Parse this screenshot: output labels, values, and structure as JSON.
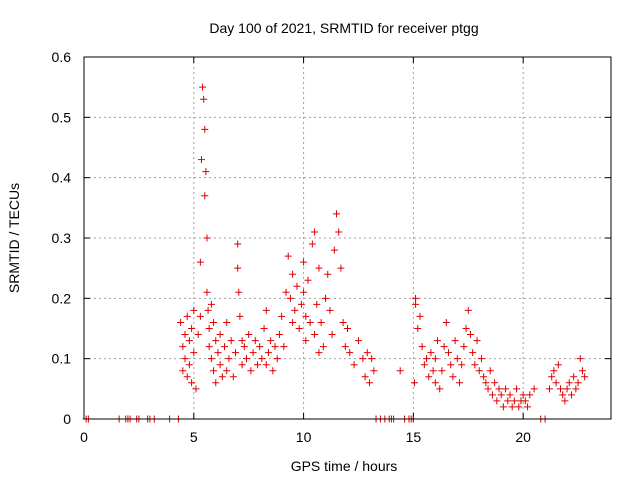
{
  "chart_data": {
    "type": "scatter",
    "title": "Day 100 of 2021, SRMTID for receiver ptgg",
    "xlabel": "GPS time / hours",
    "ylabel": "SRMTID / TECUs",
    "xlim": [
      0,
      24
    ],
    "ylim": [
      0,
      0.6
    ],
    "xticks": [
      0,
      5,
      10,
      15,
      20
    ],
    "xtick_labels": [
      "0",
      "5",
      "10",
      "15",
      "20"
    ],
    "yticks": [
      0,
      0.1,
      0.2,
      0.3,
      0.4,
      0.5,
      0.6
    ],
    "ytick_labels": [
      "0",
      "0.1",
      "0.2",
      "0.3",
      "0.4",
      "0.5",
      "0.6"
    ],
    "grid": true,
    "marker": "+",
    "marker_color": "#e00000",
    "series": [
      {
        "name": "SRMTID",
        "x": [
          0.1,
          0.2,
          1.6,
          1.9,
          2.0,
          2.1,
          2.4,
          2.5,
          2.9,
          3.0,
          3.2,
          3.9,
          4.3,
          4.4,
          4.5,
          4.5,
          4.6,
          4.6,
          4.7,
          4.7,
          4.8,
          4.8,
          4.9,
          4.9,
          5.0,
          5.0,
          5.1,
          5.2,
          5.3,
          5.3,
          5.35,
          5.4,
          5.45,
          5.5,
          5.5,
          5.55,
          5.6,
          5.6,
          5.65,
          5.7,
          5.7,
          5.8,
          5.8,
          5.9,
          5.9,
          6.0,
          6.0,
          6.1,
          6.2,
          6.2,
          6.3,
          6.4,
          6.5,
          6.5,
          6.6,
          6.7,
          6.8,
          6.9,
          7.0,
          7.0,
          7.05,
          7.1,
          7.2,
          7.2,
          7.3,
          7.4,
          7.5,
          7.6,
          7.7,
          7.8,
          7.9,
          8.0,
          8.1,
          8.2,
          8.3,
          8.3,
          8.4,
          8.5,
          8.6,
          8.7,
          8.8,
          8.9,
          9.0,
          9.1,
          9.2,
          9.3,
          9.4,
          9.5,
          9.5,
          9.6,
          9.7,
          9.8,
          9.9,
          10.0,
          10.0,
          10.1,
          10.1,
          10.2,
          10.3,
          10.4,
          10.5,
          10.5,
          10.6,
          10.7,
          10.7,
          10.8,
          10.9,
          11.0,
          11.1,
          11.2,
          11.3,
          11.4,
          11.5,
          11.6,
          11.7,
          11.8,
          11.9,
          12.0,
          12.1,
          12.3,
          12.5,
          12.7,
          12.8,
          12.9,
          13.0,
          13.1,
          13.2,
          13.3,
          13.5,
          13.7,
          13.9,
          14.0,
          14.1,
          14.4,
          14.6,
          14.8,
          14.9,
          15.0,
          15.0,
          15.05,
          15.1,
          15.1,
          15.2,
          15.3,
          15.4,
          15.5,
          15.6,
          15.7,
          15.8,
          15.9,
          16.0,
          16.0,
          16.1,
          16.2,
          16.3,
          16.4,
          16.5,
          16.6,
          16.7,
          16.8,
          16.9,
          17.0,
          17.1,
          17.2,
          17.3,
          17.4,
          17.5,
          17.6,
          17.7,
          17.8,
          17.9,
          18.0,
          18.1,
          18.2,
          18.3,
          18.4,
          18.5,
          18.6,
          18.7,
          18.8,
          18.9,
          19.0,
          19.1,
          19.2,
          19.3,
          19.4,
          19.5,
          19.6,
          19.7,
          19.8,
          19.9,
          20.0,
          20.1,
          20.2,
          20.3,
          20.5,
          20.8,
          21.0,
          21.2,
          21.3,
          21.4,
          21.5,
          21.6,
          21.7,
          21.8,
          21.9,
          22.0,
          22.1,
          22.2,
          22.3,
          22.4,
          22.5,
          22.6,
          22.7,
          22.8
        ],
        "y": [
          0,
          0,
          0,
          0,
          0,
          0,
          0,
          0,
          0,
          0,
          0,
          0,
          0,
          0.16,
          0.12,
          0.08,
          0.14,
          0.1,
          0.17,
          0.07,
          0.13,
          0.09,
          0.15,
          0.06,
          0.11,
          0.18,
          0.05,
          0.14,
          0.17,
          0.26,
          0.43,
          0.55,
          0.53,
          0.48,
          0.37,
          0.41,
          0.3,
          0.21,
          0.18,
          0.15,
          0.12,
          0.19,
          0.1,
          0.16,
          0.08,
          0.13,
          0.06,
          0.11,
          0.09,
          0.14,
          0.07,
          0.12,
          0.16,
          0.08,
          0.1,
          0.13,
          0.07,
          0.11,
          0.29,
          0.25,
          0.21,
          0.17,
          0.13,
          0.09,
          0.12,
          0.1,
          0.14,
          0.08,
          0.11,
          0.13,
          0.09,
          0.12,
          0.1,
          0.15,
          0.18,
          0.09,
          0.11,
          0.13,
          0.08,
          0.12,
          0.1,
          0.14,
          0.17,
          0.12,
          0.21,
          0.27,
          0.2,
          0.24,
          0.16,
          0.18,
          0.22,
          0.15,
          0.19,
          0.26,
          0.21,
          0.17,
          0.13,
          0.23,
          0.16,
          0.29,
          0.31,
          0.14,
          0.19,
          0.25,
          0.11,
          0.16,
          0.12,
          0.2,
          0.24,
          0.18,
          0.14,
          0.28,
          0.34,
          0.31,
          0.25,
          0.16,
          0.12,
          0.15,
          0.11,
          0.09,
          0.13,
          0.1,
          0.07,
          0.11,
          0.06,
          0.1,
          0.08,
          0,
          0,
          0,
          0,
          0,
          0,
          0.08,
          0,
          0,
          0,
          0,
          0,
          0.06,
          0.2,
          0.19,
          0.15,
          0.17,
          0.12,
          0.09,
          0.1,
          0.07,
          0.11,
          0.08,
          0.06,
          0.1,
          0.13,
          0.05,
          0.08,
          0.12,
          0.16,
          0.11,
          0.09,
          0.07,
          0.13,
          0.1,
          0.06,
          0.09,
          0.12,
          0.15,
          0.18,
          0.14,
          0.11,
          0.09,
          0.13,
          0.08,
          0.1,
          0.07,
          0.06,
          0.05,
          0.08,
          0.04,
          0.06,
          0.03,
          0.05,
          0.04,
          0.02,
          0.05,
          0.03,
          0.04,
          0.02,
          0.03,
          0.05,
          0.02,
          0.03,
          0.04,
          0.03,
          0.02,
          0.04,
          0.05,
          0,
          0,
          0.05,
          0.07,
          0.08,
          0.06,
          0.09,
          0.05,
          0.04,
          0.03,
          0.05,
          0.06,
          0.04,
          0.07,
          0.05,
          0.06,
          0.1,
          0.08,
          0.07
        ]
      }
    ]
  }
}
